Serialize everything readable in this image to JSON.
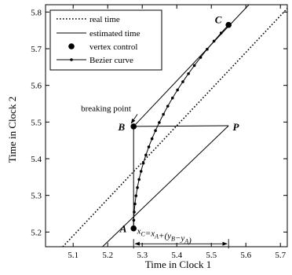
{
  "chart_data": {
    "type": "line",
    "xlabel": "Time in Clock 1",
    "ylabel": "Time in Clock 2",
    "xlim": [
      5.02,
      5.72
    ],
    "ylim": [
      5.16,
      5.82
    ],
    "x_ticks": [
      5.1,
      5.2,
      5.3,
      5.4,
      5.5,
      5.6,
      5.7
    ],
    "y_ticks": [
      5.2,
      5.3,
      5.4,
      5.5,
      5.6,
      5.7,
      5.8
    ],
    "legend_position": "top-left",
    "legend": [
      {
        "label": "real time",
        "style": "dotted"
      },
      {
        "label": "estimated time",
        "style": "solid"
      },
      {
        "label": "vertex control",
        "style": "marker"
      },
      {
        "label": "Bezier curve",
        "style": "line-marker"
      }
    ],
    "series": [
      {
        "name": "real time",
        "style": "dotted",
        "x": [
          5.02,
          5.72
        ],
        "y": [
          5.11,
          5.81
        ]
      },
      {
        "name": "estimated time",
        "style": "solid",
        "segments": [
          {
            "x": [
              5.185,
              5.55
            ],
            "y": [
              5.16,
              5.49
            ]
          },
          {
            "x": [
              5.275,
              5.609
            ],
            "y": [
              5.488,
              5.82
            ]
          },
          {
            "x": [
              5.275,
              5.275
            ],
            "y": [
              5.21,
              5.488
            ]
          },
          {
            "x": [
              5.275,
              5.55
            ],
            "y": [
              5.488,
              5.49
            ]
          }
        ]
      },
      {
        "name": "vertex control",
        "style": "marker",
        "points": [
          {
            "x": 5.275,
            "y": 5.21
          },
          {
            "x": 5.275,
            "y": 5.488
          },
          {
            "x": 5.55,
            "y": 5.765
          }
        ]
      },
      {
        "name": "Bezier curve",
        "style": "line-marker",
        "control_points": {
          "x": [
            5.275,
            5.275,
            5.55
          ],
          "y": [
            5.21,
            5.488,
            5.765
          ]
        },
        "n_markers": 25
      }
    ],
    "annotations": {
      "breaking_point": {
        "text": "breaking point",
        "x": 5.195,
        "y": 5.53,
        "target_x": 5.275,
        "target_y": 5.488
      },
      "labels": [
        {
          "text": "A",
          "x": 5.255,
          "y": 5.21
        },
        {
          "text": "B",
          "x": 5.25,
          "y": 5.488
        },
        {
          "text": "C",
          "x": 5.53,
          "y": 5.78
        },
        {
          "text": "P",
          "x": 5.562,
          "y": 5.488
        }
      ],
      "formula": {
        "x_c": "x",
        "sub_c": "C",
        "eq_x": "=x",
        "sub_a": "A",
        "plus": "+(y",
        "sub_b": "B",
        "minus": "−y",
        "sub_a2": "A",
        "close": ")",
        "x": 5.285,
        "y": 5.195
      },
      "span_arrow": {
        "x1": 5.275,
        "x2": 5.55,
        "y": 5.168
      }
    }
  }
}
